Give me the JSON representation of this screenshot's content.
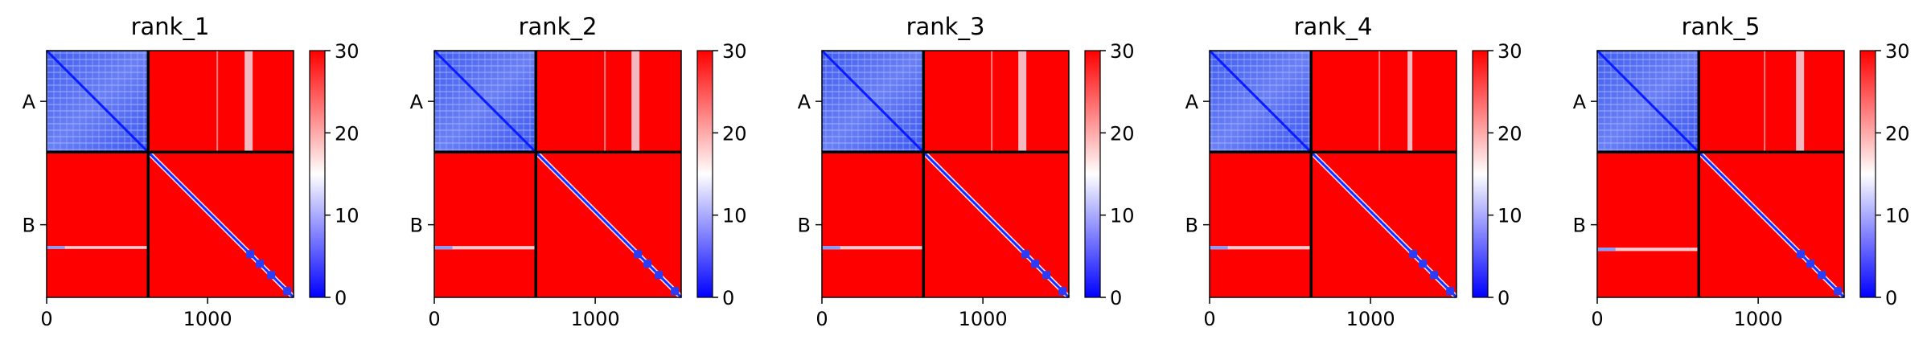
{
  "chart_data": {
    "type": "heatmap",
    "colormap": {
      "name": "bwr",
      "low": "#0000ff",
      "mid": "#ffffff",
      "high": "#ff0000"
    },
    "clim": [
      0,
      30
    ],
    "colorbar_ticks": [
      0,
      10,
      20,
      30
    ],
    "x_ticks": [
      0,
      1000
    ],
    "xlim": [
      0,
      1534
    ],
    "chain_boundary": 631,
    "chain_labels": [
      "A",
      "B"
    ],
    "grid": false,
    "panels": [
      {
        "title": "rank_1",
        "stripes_A": [
          1240,
          1255,
          1270
        ],
        "stripe_B": 1060,
        "b_row_cluster": [
          1215,
          1245
        ]
      },
      {
        "title": "rank_2",
        "stripes_A": [
          1235,
          1250,
          1265
        ],
        "stripe_B": 1060,
        "b_row_cluster": [
          1215,
          1250
        ]
      },
      {
        "title": "rank_3",
        "stripes_A": [
          1230,
          1245,
          1260
        ],
        "stripe_B": 1055,
        "b_row_cluster": [
          1215,
          1250
        ]
      },
      {
        "title": "rank_4",
        "stripes_A": [
          1240,
          1250
        ],
        "stripe_B": 1055,
        "b_row_cluster": [
          1215,
          1250
        ]
      },
      {
        "title": "rank_5",
        "stripes_A": [
          1245,
          1260,
          1275
        ],
        "stripe_B": 1040,
        "b_row_cluster": [
          1225,
          1260
        ]
      }
    ]
  }
}
